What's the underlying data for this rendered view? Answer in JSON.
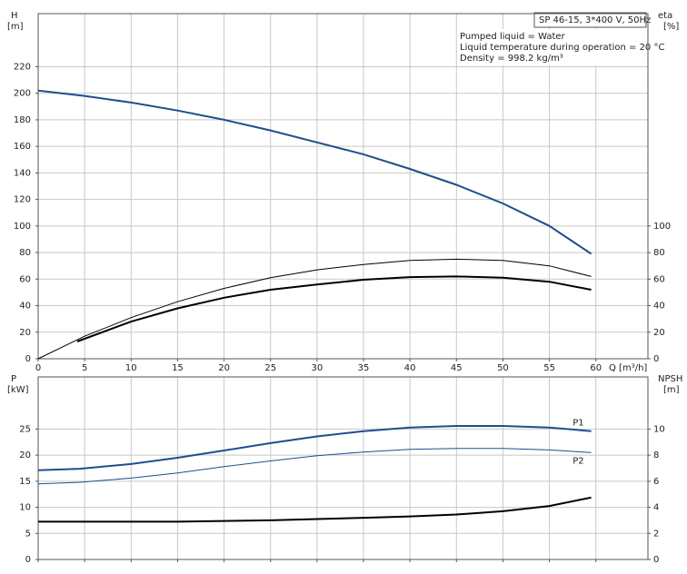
{
  "chart_data": [
    {
      "type": "line",
      "ylabel": "H",
      "yunit": "[m]",
      "y2label": "eta",
      "y2unit": "[%]",
      "xlabel": "Q [m³/h]",
      "annotation_title": "SP 46-15, 3*400 V, 50Hz",
      "annotations": [
        "Pumped liquid = Water",
        "Liquid temperature during operation = 20 °C",
        "Density = 998.2 kg/m³"
      ],
      "xlim": [
        0,
        65.6
      ],
      "xticks": [
        0,
        5,
        10,
        15,
        20,
        25,
        30,
        35,
        40,
        45,
        50,
        55,
        60
      ],
      "ylim": [
        0,
        260
      ],
      "yticks": [
        0,
        20,
        40,
        60,
        80,
        100,
        120,
        140,
        160,
        180,
        200,
        220
      ],
      "y2lim": [
        0,
        260
      ],
      "y2ticks": [
        0,
        20,
        40,
        60,
        80,
        100
      ],
      "show_xtick_labels": true,
      "grid": true,
      "series": [
        {
          "color": "#1f4e8c",
          "line_width": 2,
          "x": [
            0,
            5,
            10,
            15,
            20,
            25,
            30,
            35,
            40,
            45,
            50,
            55,
            59.5
          ],
          "values": [
            202,
            198,
            193,
            187,
            180,
            172,
            163,
            154,
            143,
            131,
            117,
            100,
            79
          ]
        },
        {
          "color": "#000000",
          "line_width": 1,
          "axis": "y2",
          "x": [
            0,
            5,
            10,
            15,
            20,
            25,
            30,
            35,
            40,
            45,
            50,
            55,
            59.5
          ],
          "values": [
            0,
            17,
            31,
            43,
            53,
            61,
            67,
            71,
            74,
            75,
            74,
            70,
            62
          ]
        },
        {
          "color": "#000000",
          "line_width": 2,
          "axis": "y2",
          "x": [
            4.2,
            10,
            15,
            20,
            25,
            30,
            35,
            40,
            45,
            50,
            55,
            59.5
          ],
          "values": [
            13,
            28,
            38,
            46,
            52,
            56,
            59.5,
            61.5,
            62,
            61,
            58,
            52
          ]
        }
      ]
    },
    {
      "type": "line",
      "ylabel": "P",
      "yunit": "[kW]",
      "y2label": "NPSH",
      "y2unit": "[m]",
      "xlim": [
        0,
        65.6
      ],
      "xticks": [
        0,
        5,
        10,
        15,
        20,
        25,
        30,
        35,
        40,
        45,
        50,
        55,
        60
      ],
      "ylim": [
        0,
        35
      ],
      "yticks": [
        0,
        5,
        10,
        15,
        20,
        25
      ],
      "y2lim": [
        0,
        14
      ],
      "y2ticks": [
        0,
        2,
        4,
        6,
        8,
        10
      ],
      "show_xtick_labels": false,
      "grid": true,
      "series": [
        {
          "name": "P1",
          "color": "#1f4e8c",
          "line_width": 2,
          "x": [
            0,
            4.5,
            10,
            15,
            20,
            25,
            30,
            35,
            40,
            45,
            50,
            55,
            59.5
          ],
          "values": [
            17.1,
            17.4,
            18.3,
            19.5,
            20.9,
            22.3,
            23.6,
            24.6,
            25.3,
            25.6,
            25.6,
            25.3,
            24.6
          ]
        },
        {
          "name": "P2",
          "color": "#1f4e8c",
          "line_width": 1,
          "x": [
            0,
            4.5,
            10,
            15,
            20,
            25,
            30,
            35,
            40,
            45,
            50,
            55,
            59.5
          ],
          "values": [
            14.5,
            14.8,
            15.6,
            16.6,
            17.8,
            18.9,
            19.9,
            20.6,
            21.1,
            21.3,
            21.3,
            21.0,
            20.5
          ]
        },
        {
          "color": "#000000",
          "line_width": 2,
          "axis": "y2",
          "x": [
            0,
            4.5,
            10,
            15,
            20,
            25,
            30,
            35,
            40,
            45,
            50,
            55,
            59.5
          ],
          "values": [
            2.9,
            2.9,
            2.9,
            2.9,
            2.95,
            3.0,
            3.1,
            3.2,
            3.3,
            3.45,
            3.7,
            4.1,
            4.75
          ]
        }
      ]
    }
  ]
}
